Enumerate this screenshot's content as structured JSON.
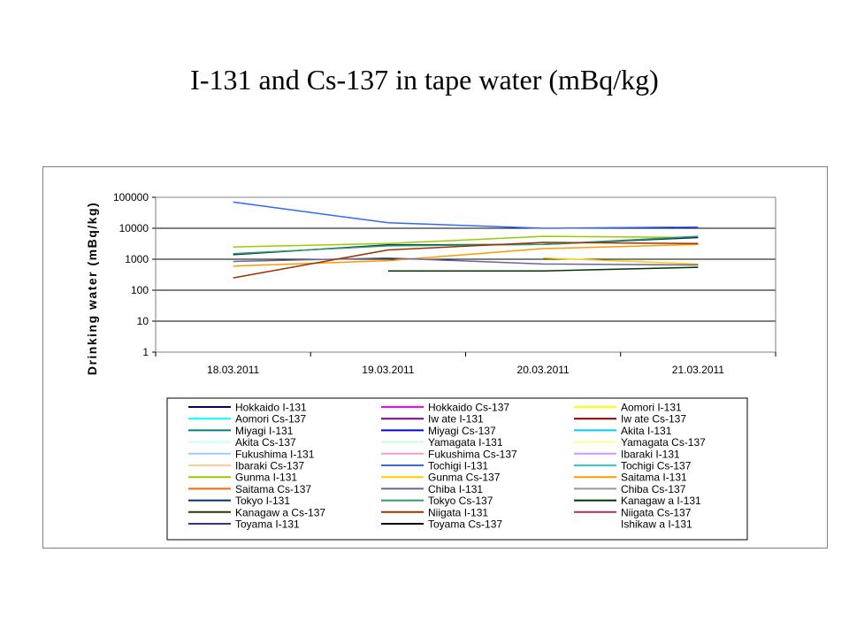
{
  "slide": {
    "title": "I-131 and Cs-137 in tape water (mBq/kg)"
  },
  "chart_data": {
    "type": "line",
    "ylabel": "Drinking water (mBq/kg)",
    "yscale": "log",
    "ylim": [
      1,
      100000
    ],
    "yticks": [
      "1",
      "10",
      "100",
      "1000",
      "10000",
      "100000"
    ],
    "categories": [
      "18.03.2011",
      "19.03.2011",
      "20.03.2011",
      "21.03.2011"
    ],
    "grid": "horizontal",
    "legend_position": "bottom",
    "series": [
      {
        "name": "Hokkaido I-131",
        "color": "#000080",
        "values": [
          null,
          null,
          null,
          null
        ]
      },
      {
        "name": "Hokkaido Cs-137",
        "color": "#ff00ff",
        "values": [
          null,
          null,
          null,
          null
        ]
      },
      {
        "name": "Aomori I-131",
        "color": "#ffff00",
        "values": [
          null,
          null,
          null,
          null
        ]
      },
      {
        "name": "Aomori Cs-137",
        "color": "#00ffff",
        "values": [
          null,
          null,
          null,
          null
        ]
      },
      {
        "name": "Iw ate I-131",
        "color": "#800080",
        "values": [
          null,
          null,
          null,
          null
        ]
      },
      {
        "name": "Iw ate Cs-137",
        "color": "#800000",
        "values": [
          null,
          null,
          null,
          null
        ]
      },
      {
        "name": "Miyagi I-131",
        "color": "#008080",
        "values": [
          null,
          null,
          null,
          null
        ]
      },
      {
        "name": "Miyagi Cs-137",
        "color": "#0000ff",
        "values": [
          null,
          null,
          null,
          null
        ]
      },
      {
        "name": "Akita I-131",
        "color": "#00ccff",
        "values": [
          null,
          null,
          null,
          null
        ]
      },
      {
        "name": "Akita Cs-137",
        "color": "#ccffff",
        "values": [
          null,
          null,
          null,
          null
        ]
      },
      {
        "name": "Yamagata I-131",
        "color": "#ccffcc",
        "values": [
          null,
          null,
          null,
          null
        ]
      },
      {
        "name": "Yamagata Cs-137",
        "color": "#ffff99",
        "values": [
          null,
          null,
          null,
          null
        ]
      },
      {
        "name": "Fukushima I-131",
        "color": "#99ccff",
        "values": [
          null,
          null,
          null,
          null
        ]
      },
      {
        "name": "Fukushima Cs-137",
        "color": "#ff99cc",
        "values": [
          null,
          null,
          null,
          null
        ]
      },
      {
        "name": "Ibaraki I-131",
        "color": "#cc99ff",
        "values": [
          null,
          null,
          null,
          null
        ]
      },
      {
        "name": "Ibaraki Cs-137",
        "color": "#ffcc99",
        "values": [
          null,
          null,
          null,
          null
        ]
      },
      {
        "name": "Tochigi I-131",
        "color": "#3366ff",
        "values": [
          70000,
          15000,
          10000,
          11000
        ]
      },
      {
        "name": "Tochigi Cs-137",
        "color": "#33cccc",
        "values": [
          null,
          null,
          null,
          null
        ]
      },
      {
        "name": "Gunma I-131",
        "color": "#99cc00",
        "values": [
          2500,
          3200,
          5500,
          5000
        ]
      },
      {
        "name": "Gunma Cs-137",
        "color": "#ffcc00",
        "values": [
          null,
          null,
          1100,
          700
        ]
      },
      {
        "name": "Saitama I-131",
        "color": "#ff9900",
        "values": [
          600,
          900,
          2200,
          3000
        ]
      },
      {
        "name": "Saitama Cs-137",
        "color": "#ff6600",
        "values": [
          null,
          null,
          null,
          null
        ]
      },
      {
        "name": "Chiba I-131",
        "color": "#666699",
        "values": [
          850,
          1100,
          700,
          650
        ]
      },
      {
        "name": "Chiba Cs-137",
        "color": "#969696",
        "values": [
          null,
          null,
          null,
          null
        ]
      },
      {
        "name": "Tokyo I-131",
        "color": "#003366",
        "values": [
          1400,
          2900,
          3000,
          5000
        ]
      },
      {
        "name": "Tokyo Cs-137",
        "color": "#339966",
        "values": [
          1500,
          2700,
          3000,
          5500
        ]
      },
      {
        "name": "Kanagaw a I-131",
        "color": "#003300",
        "values": [
          null,
          420,
          420,
          550
        ]
      },
      {
        "name": "Kanagaw a Cs-137",
        "color": "#333300",
        "values": [
          null,
          null,
          null,
          null
        ]
      },
      {
        "name": "Niigata I-131",
        "color": "#993300",
        "values": [
          250,
          2000,
          3500,
          3200
        ]
      },
      {
        "name": "Niigata Cs-137",
        "color": "#993366",
        "values": [
          null,
          null,
          null,
          null
        ]
      },
      {
        "name": "Toyama I-131",
        "color": "#333399",
        "values": [
          null,
          null,
          null,
          null
        ]
      },
      {
        "name": "Toyama Cs-137",
        "color": "#000000",
        "values": [
          null,
          null,
          null,
          null
        ]
      },
      {
        "name": "Ishikaw a I-131",
        "color": "",
        "values": [
          null,
          null,
          null,
          null
        ]
      }
    ]
  }
}
